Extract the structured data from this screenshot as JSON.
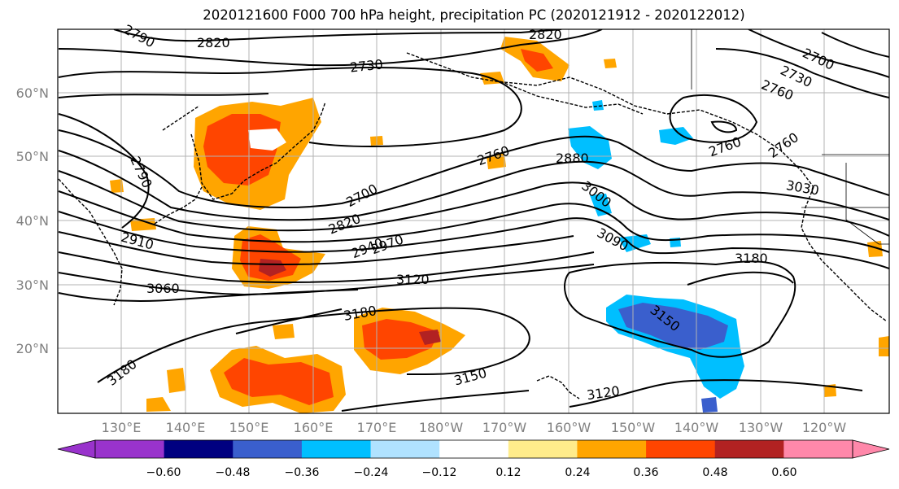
{
  "title": "2020121600 F000 700 hPa height, precipitation PC (2020121912 - 2020122012)",
  "map": {
    "lat_labels": [
      "60°N",
      "50°N",
      "40°N",
      "30°N",
      "20°N"
    ],
    "lon_labels": [
      "130°E",
      "140°E",
      "150°E",
      "160°E",
      "170°E",
      "180°W",
      "170°W",
      "160°W",
      "150°W",
      "140°W",
      "130°W",
      "120°W"
    ],
    "contour_labels": [
      {
        "label": "2790"
      },
      {
        "label": "2820"
      },
      {
        "label": "2730"
      },
      {
        "label": "2820"
      },
      {
        "label": "2700"
      },
      {
        "label": "2730"
      },
      {
        "label": "2760"
      },
      {
        "label": "2790"
      },
      {
        "label": "2760"
      },
      {
        "label": "2880"
      },
      {
        "label": "2700"
      },
      {
        "label": "2820"
      },
      {
        "label": "2940"
      },
      {
        "label": "2970"
      },
      {
        "label": "2910"
      },
      {
        "label": "3000"
      },
      {
        "label": "3090"
      },
      {
        "label": "3060"
      },
      {
        "label": "3120"
      },
      {
        "label": "3180"
      },
      {
        "label": "3180"
      },
      {
        "label": "3180"
      },
      {
        "label": "3150"
      },
      {
        "label": "3150"
      },
      {
        "label": "3120"
      },
      {
        "label": "3030"
      },
      {
        "label": "2760"
      },
      {
        "label": "2760"
      }
    ]
  },
  "colorbar": {
    "colors": [
      "#9933cc",
      "#000080",
      "#3a5fcd",
      "#00bfff",
      "#b0e2ff",
      "#ffffff",
      "#ffec8b",
      "#ffa500",
      "#ff4500",
      "#b22222",
      "#ff88aa"
    ],
    "ticks": [
      "−0.60",
      "−0.48",
      "−0.36",
      "−0.24",
      "−0.12",
      "0.12",
      "0.24",
      "0.36",
      "0.48",
      "0.60"
    ]
  }
}
